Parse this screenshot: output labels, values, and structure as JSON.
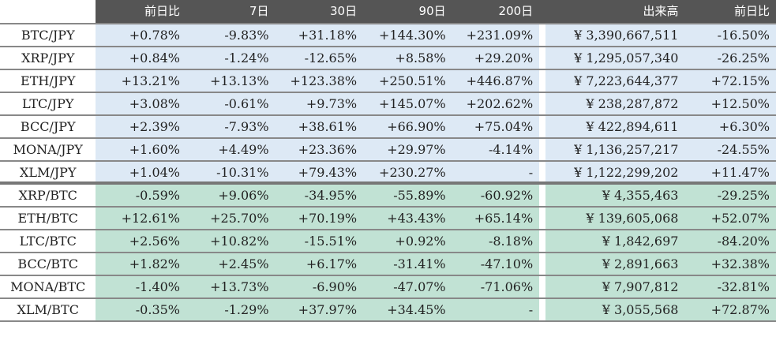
{
  "colors": {
    "header": "#555555",
    "jpy_bg": "#dde9f5",
    "btc_bg": "#c1e2d4"
  },
  "headers": [
    "前日比",
    "7日",
    "30日",
    "90日",
    "200日",
    "出来高",
    "前日比"
  ],
  "rows": [
    {
      "group": "jpy",
      "pair": "BTC/JPY",
      "vals": [
        "+0.78%",
        "-9.83%",
        "+31.18%",
        "+144.30%",
        "+231.09%",
        "¥ 3,390,667,511",
        "-16.50%"
      ]
    },
    {
      "group": "jpy",
      "pair": "XRP/JPY",
      "vals": [
        "+0.84%",
        "-1.24%",
        "-12.65%",
        "+8.58%",
        "+29.20%",
        "¥ 1,295,057,340",
        "-26.25%"
      ]
    },
    {
      "group": "jpy",
      "pair": "ETH/JPY",
      "vals": [
        "+13.21%",
        "+13.13%",
        "+123.38%",
        "+250.51%",
        "+446.87%",
        "¥ 7,223,644,377",
        "+72.15%"
      ]
    },
    {
      "group": "jpy",
      "pair": "LTC/JPY",
      "vals": [
        "+3.08%",
        "-0.61%",
        "+9.73%",
        "+145.07%",
        "+202.62%",
        "¥ 238,287,872",
        "+12.50%"
      ]
    },
    {
      "group": "jpy",
      "pair": "BCC/JPY",
      "vals": [
        "+2.39%",
        "-7.93%",
        "+38.61%",
        "+66.90%",
        "+75.04%",
        "¥ 422,894,611",
        "+6.30%"
      ]
    },
    {
      "group": "jpy",
      "pair": "MONA/JPY",
      "vals": [
        "+1.60%",
        "+4.49%",
        "+23.36%",
        "+29.97%",
        "-4.14%",
        "¥ 1,136,257,217",
        "-24.55%"
      ]
    },
    {
      "group": "jpy",
      "pair": "XLM/JPY",
      "vals": [
        "+1.04%",
        "-10.31%",
        "+79.43%",
        "+230.27%",
        "-",
        "¥ 1,122,299,202",
        "+11.47%"
      ]
    },
    {
      "group": "btc",
      "pair": "XRP/BTC",
      "vals": [
        "-0.59%",
        "+9.06%",
        "-34.95%",
        "-55.89%",
        "-60.92%",
        "¥ 4,355,463",
        "-29.25%"
      ]
    },
    {
      "group": "btc",
      "pair": "ETH/BTC",
      "vals": [
        "+12.61%",
        "+25.70%",
        "+70.19%",
        "+43.43%",
        "+65.14%",
        "¥ 139,605,068",
        "+52.07%"
      ]
    },
    {
      "group": "btc",
      "pair": "LTC/BTC",
      "vals": [
        "+2.56%",
        "+10.82%",
        "-15.51%",
        "+0.92%",
        "-8.18%",
        "¥ 1,842,697",
        "-84.20%"
      ]
    },
    {
      "group": "btc",
      "pair": "BCC/BTC",
      "vals": [
        "+1.82%",
        "+2.45%",
        "+6.17%",
        "-31.41%",
        "-47.10%",
        "¥ 2,891,663",
        "+32.38%"
      ]
    },
    {
      "group": "btc",
      "pair": "MONA/BTC",
      "vals": [
        "-1.40%",
        "+13.73%",
        "-6.90%",
        "-47.07%",
        "-71.06%",
        "¥ 7,907,812",
        "-32.81%"
      ]
    },
    {
      "group": "btc",
      "pair": "XLM/BTC",
      "vals": [
        "-0.35%",
        "-1.29%",
        "+37.97%",
        "+34.45%",
        "-",
        "¥ 3,055,568",
        "+72.87%"
      ]
    }
  ]
}
